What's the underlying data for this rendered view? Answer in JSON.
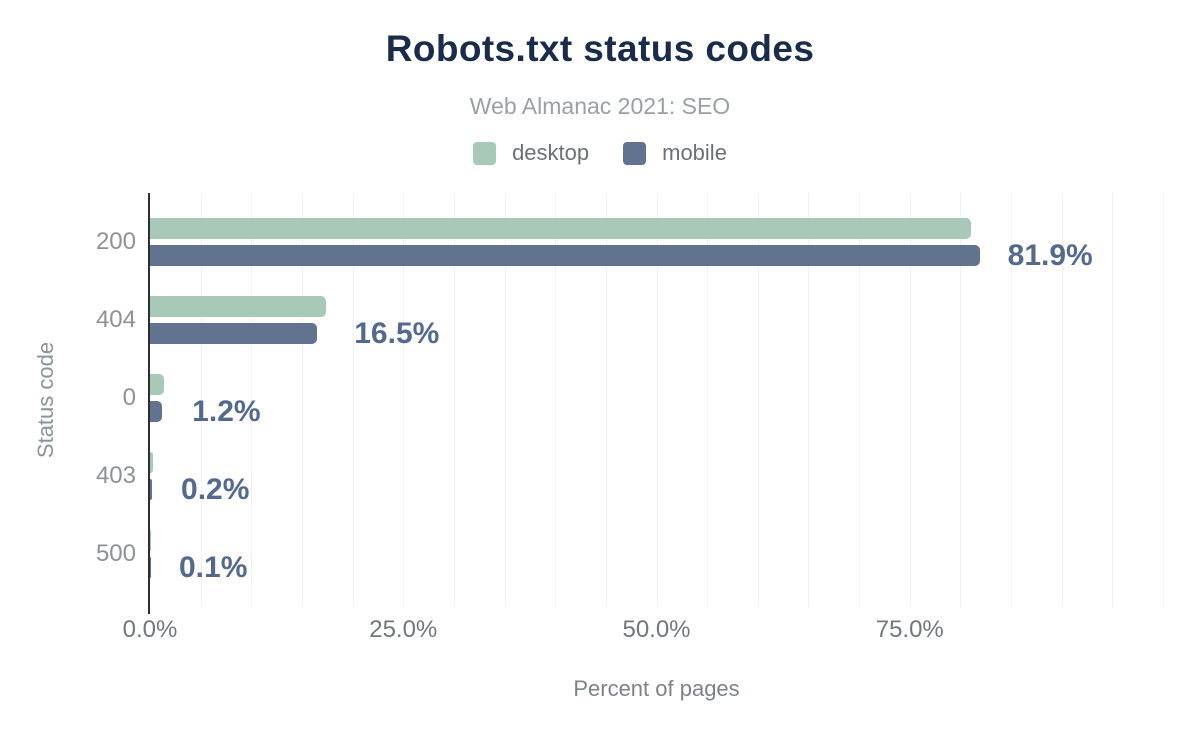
{
  "chart": {
    "title": "Robots.txt status codes",
    "subtitle": "Web Almanac 2021: SEO"
  },
  "chart_data": {
    "type": "bar",
    "orientation": "horizontal",
    "title": "Robots.txt status codes",
    "subtitle": "Web Almanac 2021: SEO",
    "categories": [
      "200",
      "404",
      "0",
      "403",
      "500"
    ],
    "series": [
      {
        "name": "desktop",
        "color": "#a8c9b7",
        "values": [
          81.0,
          17.4,
          1.4,
          0.3,
          0.1
        ]
      },
      {
        "name": "mobile",
        "color": "#62738f",
        "values": [
          81.9,
          16.5,
          1.2,
          0.2,
          0.1
        ]
      }
    ],
    "data_labels": [
      "81.9%",
      "16.5%",
      "1.2%",
      "0.2%",
      "0.1%"
    ],
    "data_labels_series": "mobile",
    "xlabel": "Percent of pages",
    "ylabel": "Status code",
    "xlim": [
      0,
      100
    ],
    "x_ticks": [
      {
        "value": 0,
        "label": "0.0%"
      },
      {
        "value": 25,
        "label": "25.0%"
      },
      {
        "value": 50,
        "label": "50.0%"
      },
      {
        "value": 75,
        "label": "75.0%"
      }
    ],
    "gridline_step": 5,
    "grid": true,
    "legend_position": "top"
  },
  "colors": {
    "title": "#1b2c4a",
    "subtitle": "#9aa0a6",
    "legend_text": "#6b7177",
    "category_text": "#8d9298",
    "axis_text": "#72777e",
    "axis_title_text": "#7d828a",
    "data_label": "#55698f",
    "axis_line": "#2e2e2e",
    "gridline": "#f1f1f1",
    "desktop": "#a8c9b7",
    "mobile": "#62738f",
    "background": "#ffffff"
  }
}
